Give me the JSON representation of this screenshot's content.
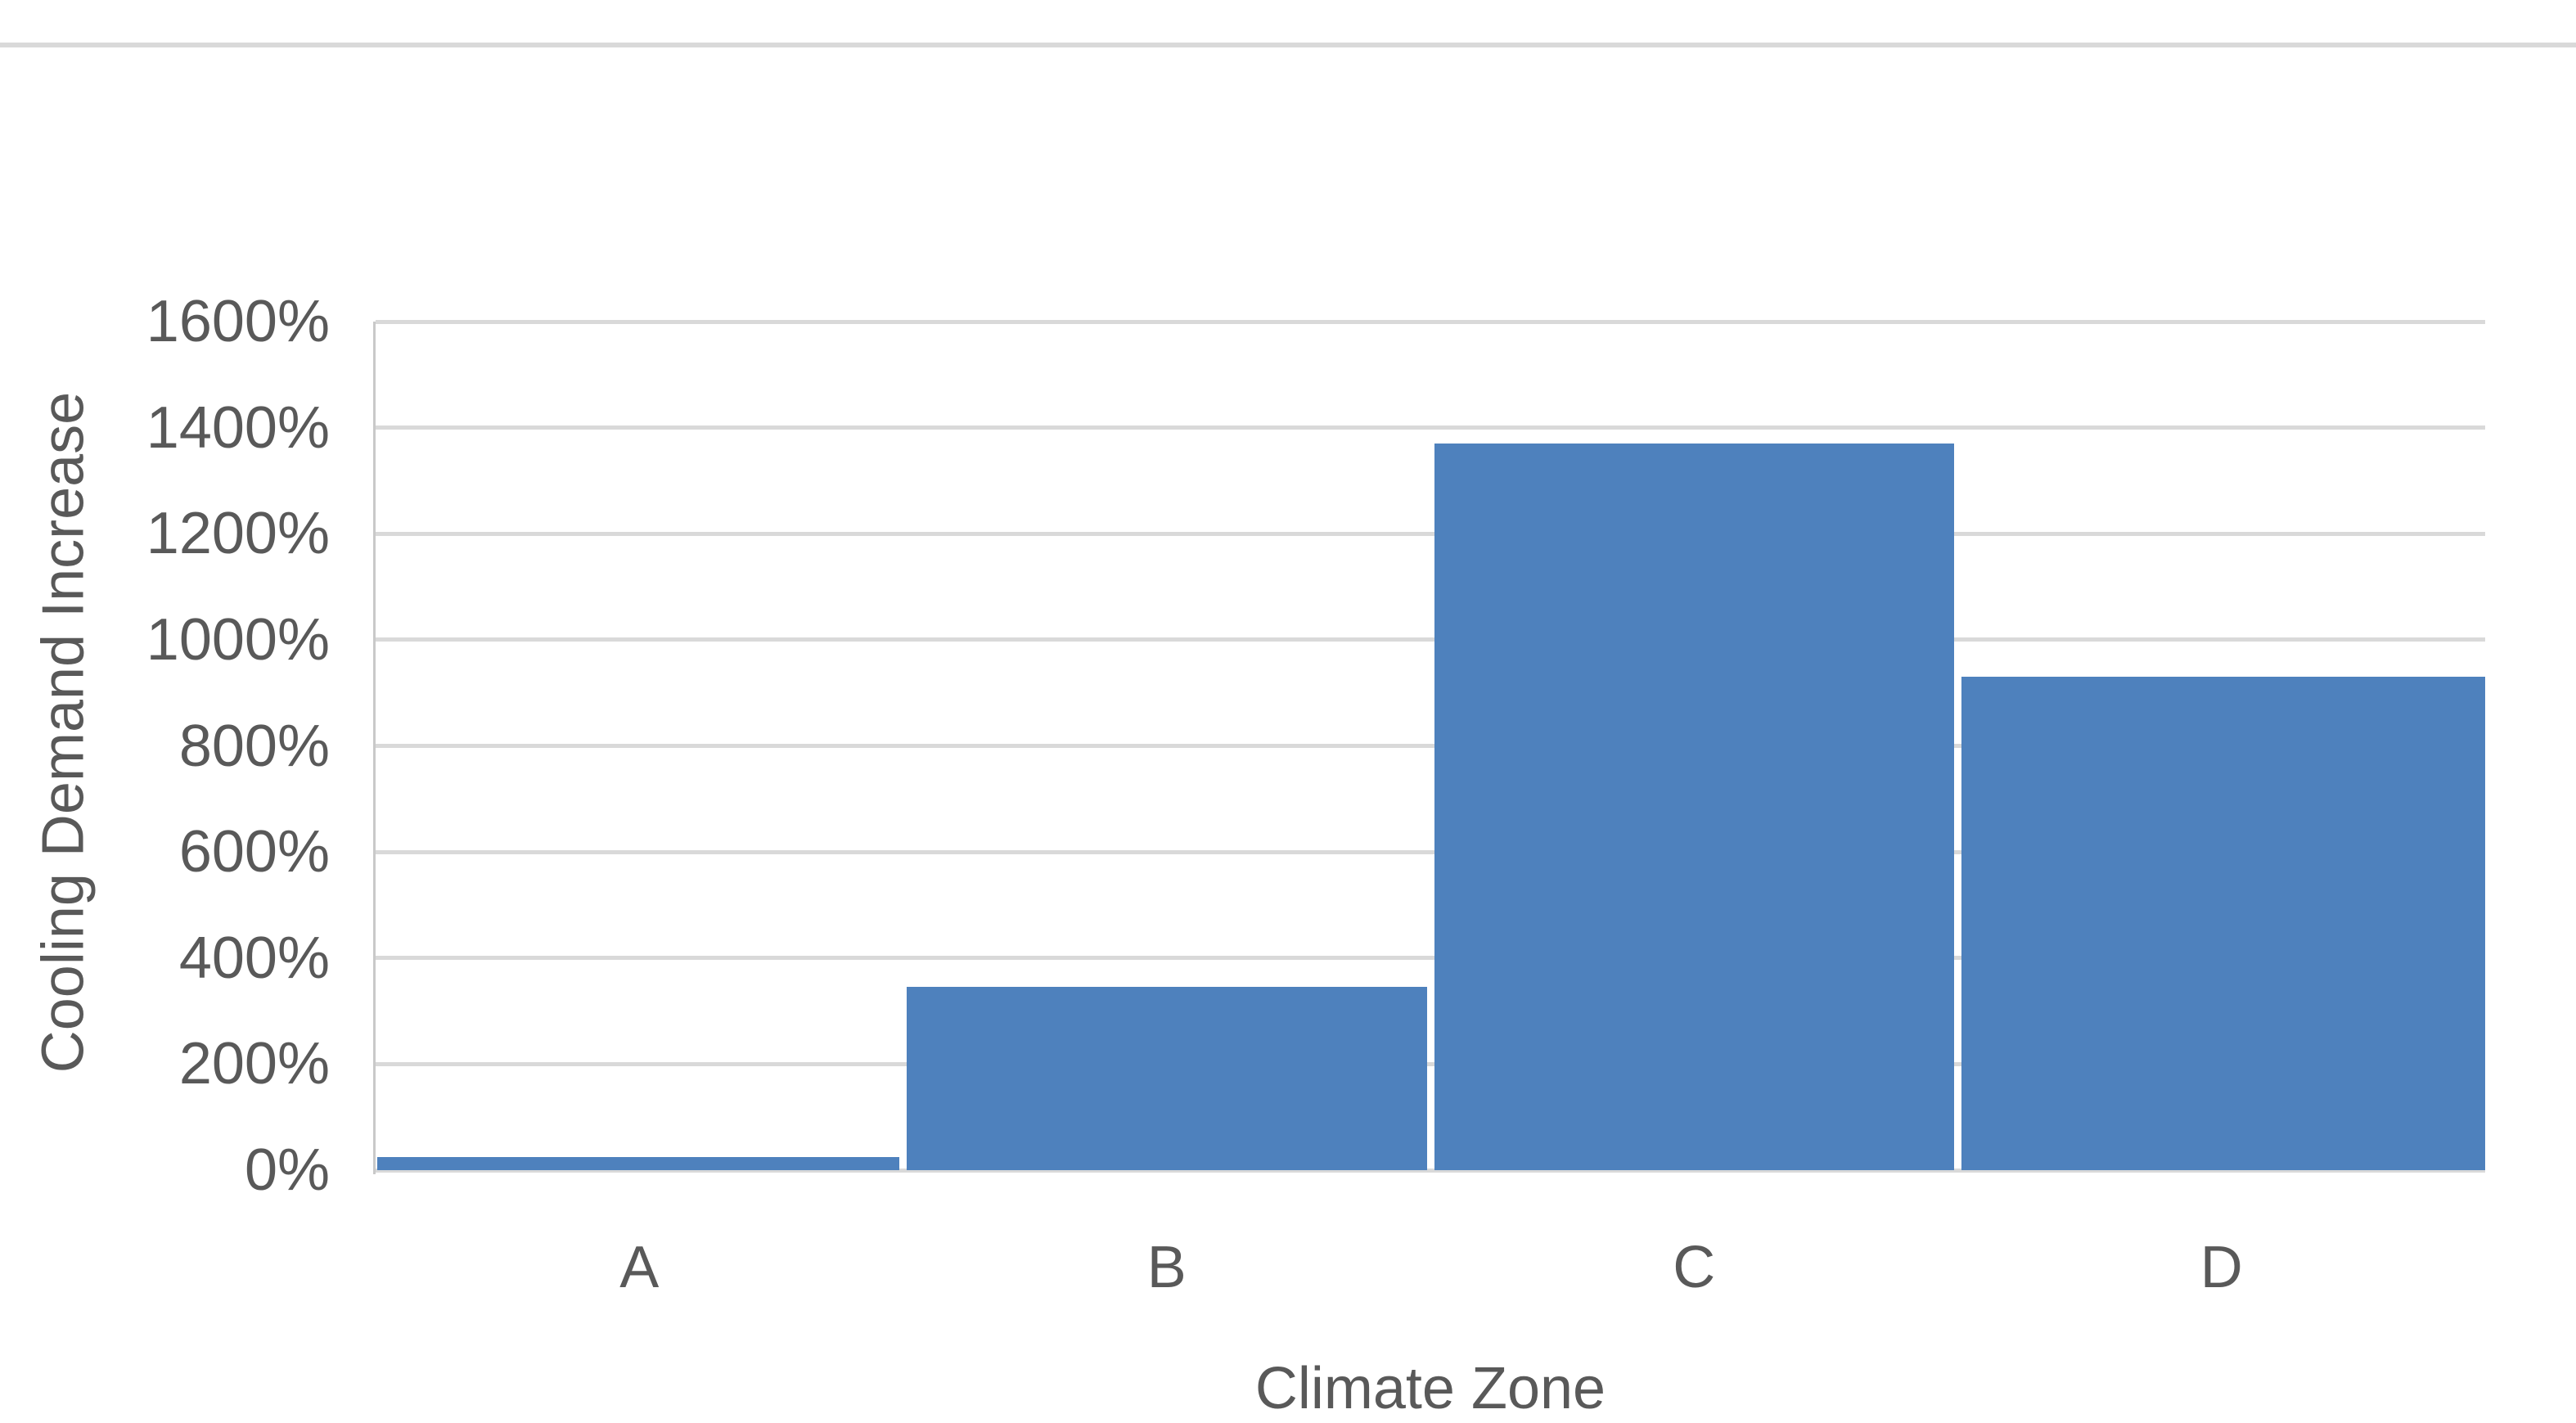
{
  "page": {
    "background_color": "#ffffff",
    "top_rule_color": "#d9d9d9"
  },
  "chart_data": {
    "type": "bar",
    "categories": [
      "A",
      "B",
      "C",
      "D"
    ],
    "values": [
      25,
      345,
      1370,
      930
    ],
    "title": "",
    "xlabel": "Climate Zone",
    "ylabel": "Cooling Demand Increase",
    "ylim": [
      0,
      1600
    ],
    "ytick_step": 200,
    "ytick_labels": [
      "0%",
      "200%",
      "400%",
      "600%",
      "800%",
      "1000%",
      "1200%",
      "1400%",
      "1600%"
    ],
    "value_unit": "%",
    "grid": true,
    "legend": false,
    "bar_color": "#4e81bd",
    "gridline_color": "#d9d9d9",
    "axis_line_color": "#c9c9c9",
    "text_color": "#595959"
  }
}
